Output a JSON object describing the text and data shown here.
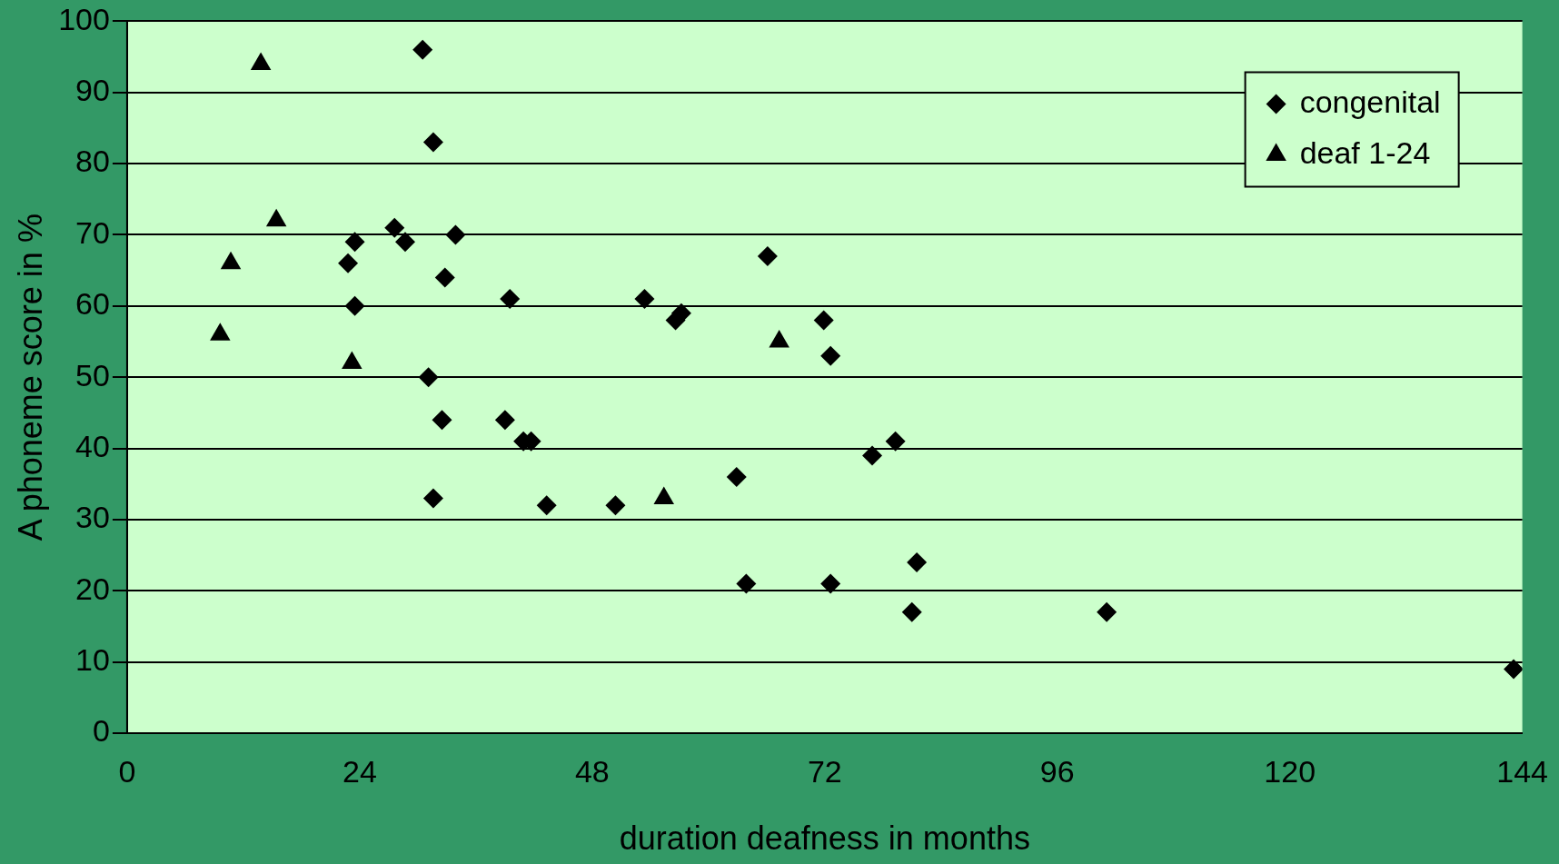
{
  "chart_data": {
    "type": "scatter",
    "xlabel": "duration deafness in months",
    "ylabel": "A phoneme score in %",
    "xlim": [
      0,
      144
    ],
    "xticks": [
      0,
      24,
      48,
      72,
      96,
      120,
      144
    ],
    "ylim": [
      0,
      100
    ],
    "yticks": [
      0,
      10,
      20,
      30,
      40,
      50,
      60,
      70,
      80,
      90,
      100
    ],
    "grid": "y",
    "legend": "top right",
    "series": [
      {
        "name": "congenital",
        "color": "#000000",
        "marker": "diamond",
        "x": [
          30.5,
          31.6,
          27.6,
          28.7,
          23.5,
          22.8,
          33.9,
          32.8,
          23.5,
          39.5,
          31.1,
          32.5,
          31.6,
          39,
          40.9,
          41.7,
          43.3,
          50.4,
          53.4,
          56.6,
          57.2,
          62.9,
          63.9,
          66.1,
          71.9,
          72.6,
          72.6,
          76.9,
          79.3,
          81,
          81.5,
          101.1,
          143.1
        ],
        "values": [
          96,
          83,
          71,
          69,
          69,
          66,
          70,
          64,
          60,
          61,
          50,
          44,
          33,
          44,
          41,
          41,
          32,
          32,
          61,
          58,
          59,
          36,
          21,
          67,
          58,
          53,
          21,
          39,
          41,
          17,
          24,
          17,
          9
        ]
      },
      {
        "name": "deaf 1-24",
        "color": "#000000",
        "marker": "triangle",
        "x": [
          9.6,
          10.7,
          13.8,
          15.4,
          23.2,
          55.4,
          67.3
        ],
        "values": [
          56,
          66,
          94,
          72,
          52,
          33,
          55
        ]
      }
    ]
  }
}
